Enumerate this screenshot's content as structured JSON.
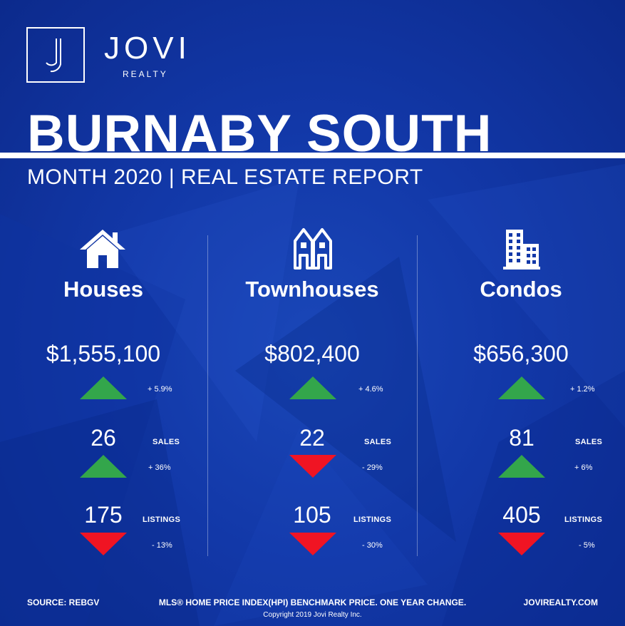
{
  "brand": {
    "name": "JOVI",
    "sub": "REALTY",
    "logo_letter": "J"
  },
  "title": "BURNABY SOUTH",
  "subtitle": "MONTH 2020 | REAL ESTATE REPORT",
  "colors": {
    "background": "#1238a8",
    "up": "#33a64b",
    "down": "#f01423",
    "text": "#ffffff"
  },
  "columns": [
    {
      "icon": "house-icon",
      "name": "Houses",
      "price": "$1,555,100",
      "price_change": "+ 5.9%",
      "price_direction": "up",
      "sales": "26",
      "sales_label": "SALES",
      "sales_change": "+ 36%",
      "sales_direction": "up",
      "listings": "175",
      "listings_label": "LISTINGS",
      "listings_change": "- 13%",
      "listings_direction": "down"
    },
    {
      "icon": "townhouse-icon",
      "name": "Townhouses",
      "price": "$802,400",
      "price_change": "+ 4.6%",
      "price_direction": "up",
      "sales": "22",
      "sales_label": "SALES",
      "sales_change": "- 29%",
      "sales_direction": "down",
      "listings": "105",
      "listings_label": "LISTINGS",
      "listings_change": "- 30%",
      "listings_direction": "down"
    },
    {
      "icon": "condo-building-icon",
      "name": "Condos",
      "price": "$656,300",
      "price_change": "+ 1.2%",
      "price_direction": "up",
      "sales": "81",
      "sales_label": "SALES",
      "sales_change": "+ 6%",
      "sales_direction": "up",
      "listings": "405",
      "listings_label": "LISTINGS",
      "listings_change": "- 5%",
      "listings_direction": "down"
    }
  ],
  "footer": {
    "source": "SOURCE:  REBGV",
    "note": "MLS® HOME PRICE INDEX(HPI) BENCHMARK PRICE. ONE YEAR CHANGE.",
    "website": "JOVIREALTY.COM",
    "copyright": "Copyright 2019 Jovi Realty Inc."
  }
}
